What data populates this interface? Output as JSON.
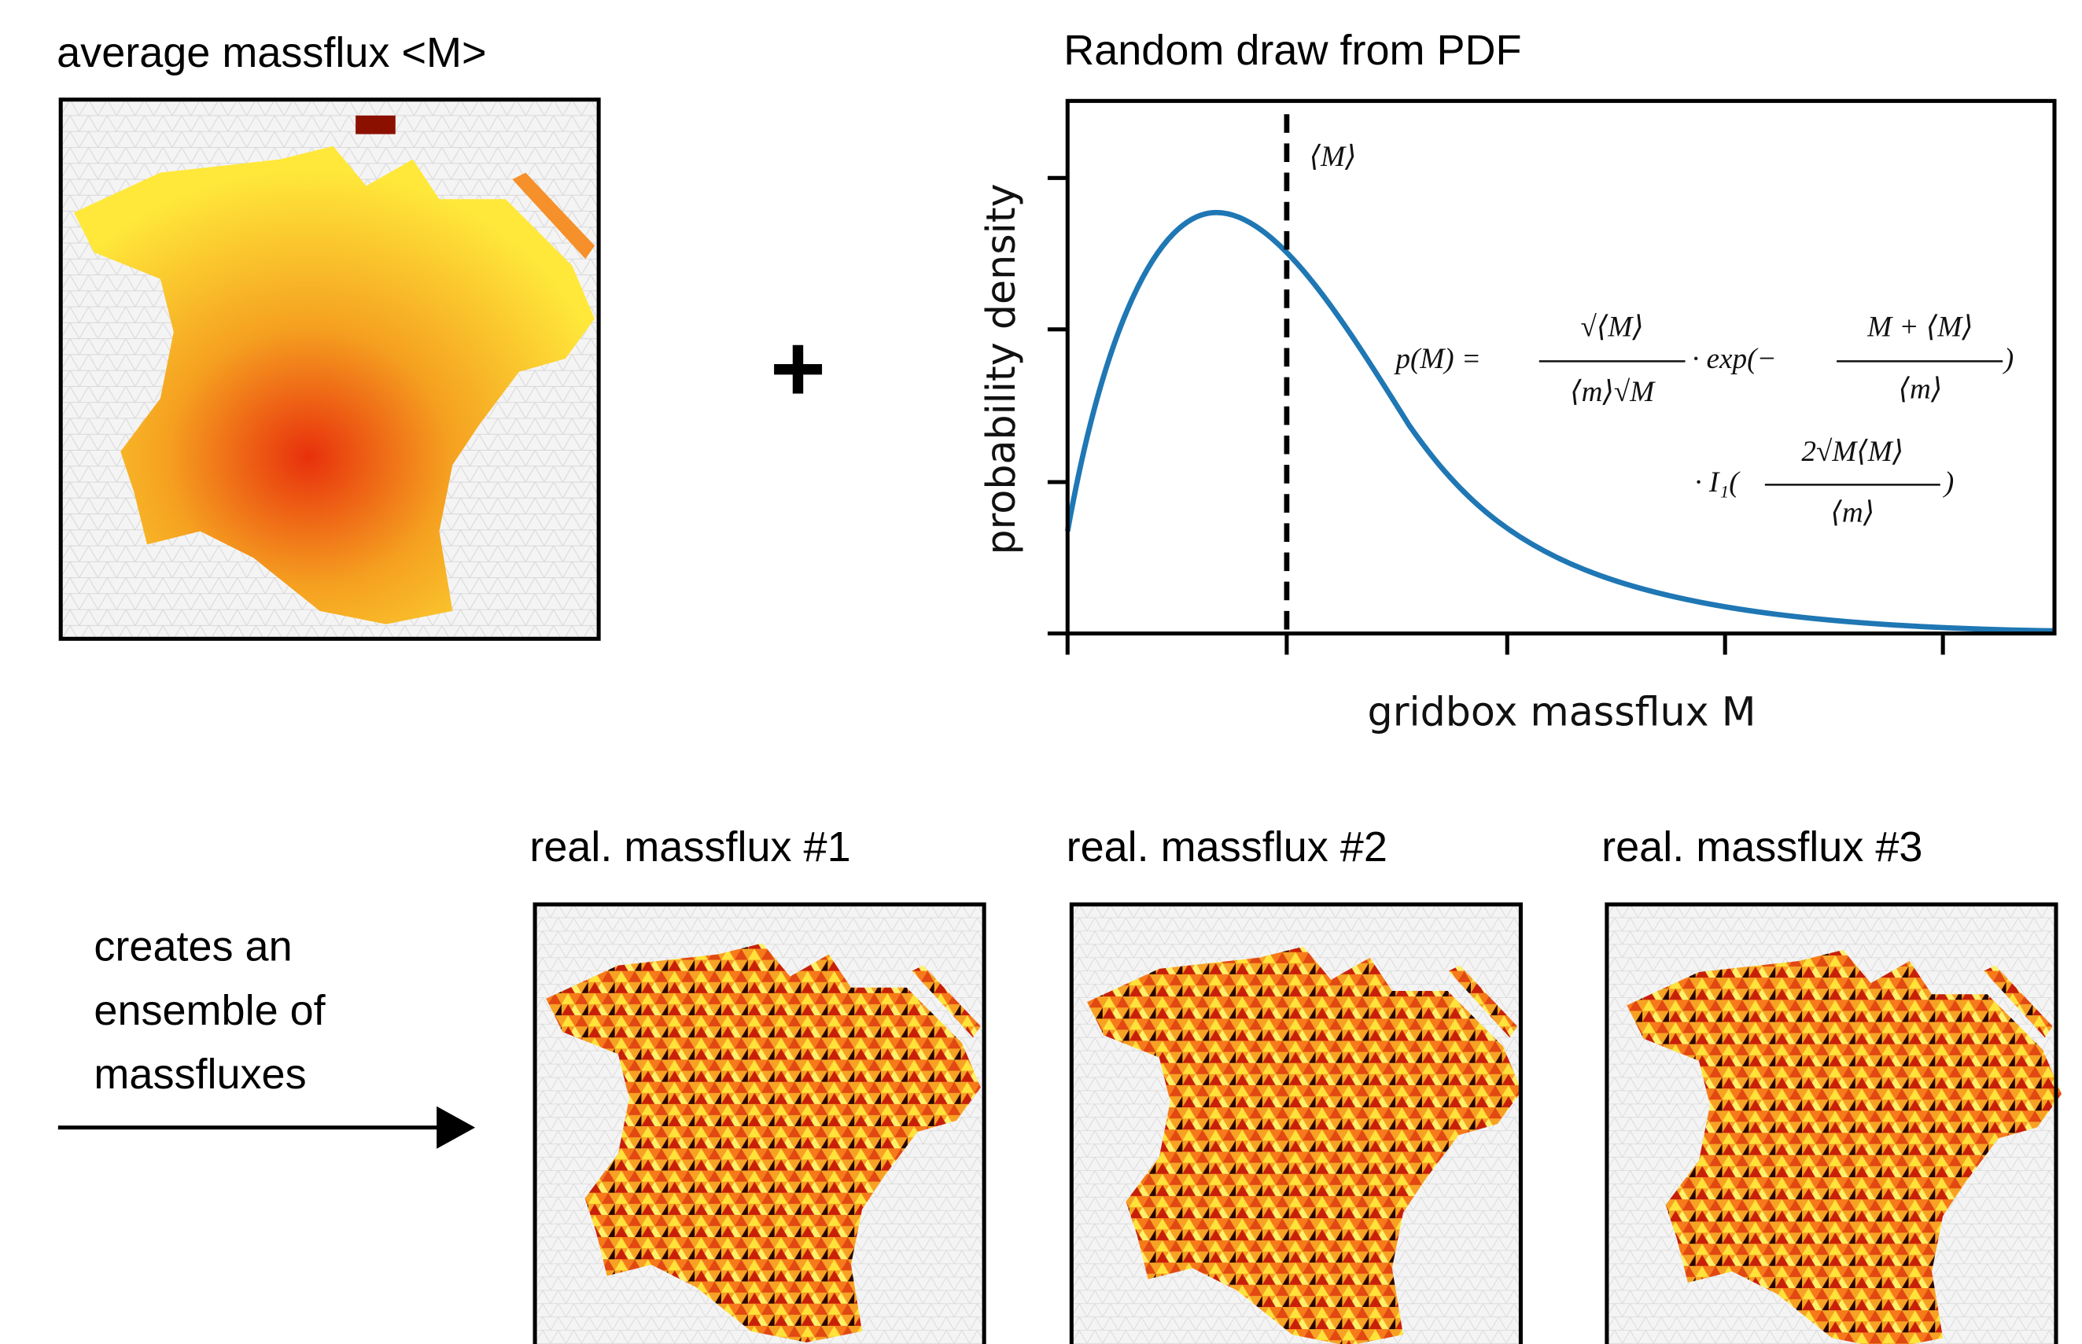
{
  "average_panel": {
    "title": "average massflux <M>"
  },
  "operator": "+",
  "pdf_panel": {
    "title": "Random draw from PDF",
    "y_label": "probability density",
    "x_label": "gridbox massflux M",
    "mean_label": "⟨M⟩",
    "formula": {
      "lhs": "p(M) =",
      "frac1_num": "√⟨M⟩",
      "frac1_den": "⟨m⟩√M",
      "exp_open": "· exp(−",
      "frac2_num": "M + ⟨M⟩",
      "frac2_den": "⟨m⟩",
      "exp_close": ")",
      "bessel_open": "· I₁(",
      "frac3_num": "2√M⟨M⟩",
      "frac3_den": "⟨m⟩",
      "bessel_close": ")"
    }
  },
  "arrow_text": [
    "creates an",
    "ensemble of",
    "massfluxes"
  ],
  "realizations": [
    "real. massflux #1",
    "real. massflux #2",
    "real. massflux #3"
  ]
}
